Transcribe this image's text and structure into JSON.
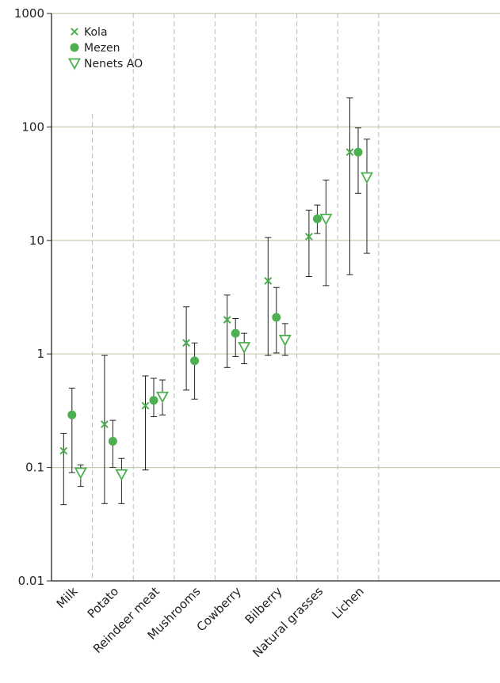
{
  "chart_data": {
    "type": "scatter",
    "title": "",
    "xlabel": "",
    "ylabel": "",
    "y_scale": "log",
    "ylim": [
      0.01,
      1000
    ],
    "y_ticks": [
      "0.01",
      "0.1",
      "1",
      "10",
      "100",
      "1000"
    ],
    "grid": "horizontal lines at decades, dashed vertical separators between categories",
    "legend_position": "top-left",
    "categories": [
      "Milk",
      "Potato",
      "Reindeer meat",
      "Mushrooms",
      "Cowberry",
      "Bilberry",
      "Natural grasses",
      "Lichen"
    ],
    "series": [
      {
        "name": "Kola",
        "marker": "x",
        "color": "#4caf50",
        "values": [
          0.14,
          0.24,
          0.35,
          1.25,
          2.0,
          4.4,
          10.8,
          60
        ],
        "err_low": [
          0.047,
          0.048,
          0.095,
          0.48,
          0.76,
          0.97,
          4.8,
          5.0
        ],
        "err_high": [
          0.2,
          0.97,
          0.64,
          2.6,
          3.3,
          10.6,
          18.5,
          180
        ]
      },
      {
        "name": "Mezen",
        "marker": "circle",
        "color": "#4caf50",
        "values": [
          0.29,
          0.17,
          0.39,
          0.87,
          1.52,
          2.1,
          15.5,
          60
        ],
        "err_low": [
          0.09,
          0.1,
          0.28,
          0.4,
          0.95,
          1.02,
          11.5,
          26
        ],
        "err_high": [
          0.5,
          0.26,
          0.61,
          1.25,
          2.05,
          3.85,
          20.5,
          98
        ]
      },
      {
        "name": "Nenets AO",
        "marker": "triangle-down",
        "color": "#4caf50",
        "values": [
          0.09,
          0.087,
          0.42,
          null,
          1.15,
          1.33,
          15.5,
          36
        ],
        "err_low": [
          0.068,
          0.048,
          0.29,
          null,
          0.82,
          0.97,
          4.0,
          7.7
        ],
        "err_high": [
          0.105,
          0.12,
          0.59,
          null,
          1.52,
          1.85,
          34,
          78
        ]
      }
    ]
  },
  "colors": {
    "marker": "#4caf50",
    "error_bar": "#222222",
    "grid": "#c9c8a8",
    "separator": "#bbbbbb",
    "axis": "#222222"
  }
}
